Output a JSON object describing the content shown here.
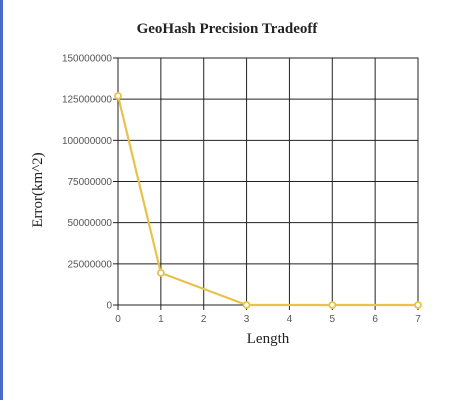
{
  "chart_data": {
    "type": "line",
    "title": "GeoHash Precision Tradeoff",
    "xlabel": "Length",
    "ylabel": "Error(km^2)",
    "xlim": [
      0,
      7
    ],
    "ylim": [
      0,
      150000000
    ],
    "x_ticks": [
      "0",
      "1",
      "2",
      "3",
      "4",
      "5",
      "6",
      "7"
    ],
    "y_ticks": [
      "0",
      "25000000",
      "50000000",
      "75000000",
      "100000000",
      "125000000",
      "150000000"
    ],
    "grid": true,
    "series": [
      {
        "x": [
          0,
          1,
          3,
          5,
          7
        ],
        "y": [
          127000000,
          19500000,
          0,
          0,
          0
        ],
        "color": "#e8c24a"
      }
    ]
  }
}
